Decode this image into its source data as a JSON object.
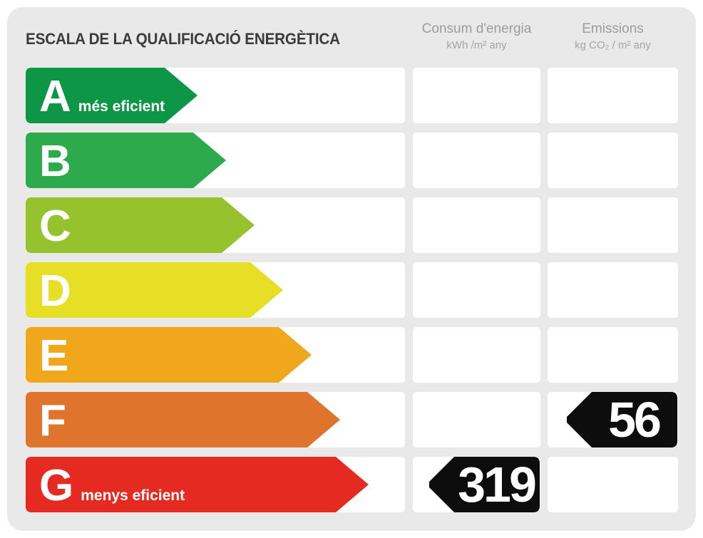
{
  "header": {
    "title": "ESCALA DE LA QUALIFICACIÓ ENERGÈTICA",
    "columns": [
      {
        "title": "Consum d'energia",
        "unit": "kWh /m²  any"
      },
      {
        "title": "Emissions",
        "unit": "kg CO₂  / m²  any"
      }
    ]
  },
  "scale": {
    "bands": [
      {
        "letter": "A",
        "label": "més eficient",
        "color": "#0e9647",
        "arrow_width": 241
      },
      {
        "letter": "B",
        "label": "",
        "color": "#2caa4c",
        "arrow_width": 281
      },
      {
        "letter": "C",
        "label": "",
        "color": "#95c22d",
        "arrow_width": 321
      },
      {
        "letter": "D",
        "label": "",
        "color": "#e7df26",
        "arrow_width": 361
      },
      {
        "letter": "E",
        "label": "",
        "color": "#f0a71c",
        "arrow_width": 401
      },
      {
        "letter": "F",
        "label": "",
        "color": "#df752c",
        "arrow_width": 441
      },
      {
        "letter": "G",
        "label": "menys eficient",
        "color": "#e52a22",
        "arrow_width": 481
      }
    ]
  },
  "values": {
    "consum": {
      "value": "319",
      "rating": "G",
      "arrow_color": "#0d0d0d",
      "text_color": "#ffffff"
    },
    "emissions": {
      "value": "56",
      "rating": "F",
      "arrow_color": "#0d0d0d",
      "text_color": "#ffffff"
    }
  },
  "chart_data": {
    "type": "bar",
    "title": "ESCALA DE LA QUALIFICACIÓ ENERGÈTICA",
    "categories": [
      "A",
      "B",
      "C",
      "D",
      "E",
      "F",
      "G"
    ],
    "category_colors": [
      "#0e9647",
      "#2caa4c",
      "#95c22d",
      "#e7df26",
      "#f0a71c",
      "#df752c",
      "#e52a22"
    ],
    "category_annotations": {
      "A": "més eficient",
      "G": "menys eficient"
    },
    "series": [
      {
        "name": "Consum d'energia (kWh /m² any)",
        "rating": "G",
        "value": 319
      },
      {
        "name": "Emissions (kg CO₂ / m² any)",
        "rating": "F",
        "value": 56
      }
    ],
    "legend_position": "none",
    "grid": false
  }
}
